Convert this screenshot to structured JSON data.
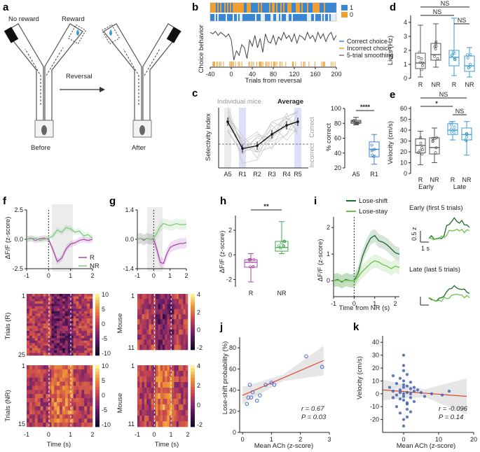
{
  "panels": {
    "a": {
      "letter": "a",
      "no_reward": "No reward",
      "reward": "Reward",
      "reversal": "Reversal",
      "before": "Before",
      "after": "After"
    },
    "b": {
      "letter": "b",
      "ylabel": "Choice behavior",
      "xlabel": "Trials from reversal",
      "legend_bar": [
        "1",
        "0"
      ],
      "legend": [
        "Correct choice",
        "Incorrect choice",
        "5-trial smoothing"
      ],
      "colors": {
        "blue": "#3a86d0",
        "orange": "#f0a030"
      }
    },
    "c": {
      "letter": "c",
      "title_left": "Individual mice",
      "title_right": "Average",
      "ylabel": "Selectivity index",
      "side_top": "Correct",
      "side_bottom": "Incorrect",
      "ylabel_right": "% correct",
      "sig": "****"
    },
    "d": {
      "letter": "d",
      "ylabel": "Licks (Hz)",
      "ns": [
        "NS",
        "NS",
        "NS"
      ]
    },
    "e": {
      "letter": "e",
      "ylabel": "Velocity (cm/s)",
      "sig": [
        "NS",
        "*",
        "NS"
      ],
      "groups": [
        "Early",
        "Late"
      ]
    },
    "f": {
      "letter": "f",
      "ylabel_trace": "ΔF/F (z-score)",
      "legend": [
        "R",
        "NR"
      ],
      "xlabel": "Time (s)",
      "ylabel_hm1": "Trials (R)",
      "ylabel_hm2": "Trials (NR)",
      "hm1_rows": [
        "1",
        "25"
      ],
      "hm2_rows": [
        "1",
        "15"
      ]
    },
    "g": {
      "letter": "g",
      "ylabel_hm": "Mouse",
      "xlabel": "Time (s)",
      "hm_rows": [
        "1",
        "11"
      ]
    },
    "h": {
      "letter": "h",
      "ylabel": "ΔF/F (z-score)",
      "sig": "**"
    },
    "i": {
      "letter": "i",
      "legend": [
        "Lose-shift",
        "Lose-stay"
      ],
      "ylabel": "ΔF/F (z-score)",
      "xlabel": "Time from NR (s)",
      "early": "Early (first 5 trials)",
      "late": "Late (last 5 trials)",
      "scale_y": "0.5 z",
      "scale_x": "1 s"
    },
    "j": {
      "letter": "j",
      "ylabel": "Lose-shift probability (%)",
      "xlabel": "Mean ACh (z-score)",
      "stat_r": "r = 0.67",
      "stat_p": "P = 0.03"
    },
    "k": {
      "letter": "k",
      "ylabel": "Velocity (cm/s)",
      "xlabel": "Mean ACh (z-score)",
      "stat_r": "r = -0.096",
      "stat_p": "P = 0.14"
    }
  },
  "chart_data": [
    {
      "id": "b",
      "type": "line",
      "xlabel": "Trials from reversal",
      "ylabel": "Choice behavior",
      "x_ticks": [
        -40,
        0,
        40,
        80,
        120,
        160,
        200
      ],
      "xlim": [
        -40,
        200
      ],
      "series": [
        {
          "name": "5-trial smoothing",
          "x": [
            -40,
            -35,
            -30,
            -25,
            -20,
            -15,
            -10,
            -5,
            0,
            5,
            10,
            15,
            20,
            25,
            30,
            35,
            40,
            45,
            50,
            55,
            60,
            65,
            70,
            75,
            80,
            85,
            90,
            95,
            100,
            105,
            110,
            115,
            120,
            125,
            130,
            135,
            140,
            145,
            150,
            155,
            160,
            165,
            170,
            175,
            180,
            185,
            190,
            195,
            200
          ],
          "y": [
            0.95,
            0.9,
            0.98,
            0.85,
            0.95,
            0.88,
            0.8,
            0.9,
            0.7,
            0.05,
            0.35,
            0.2,
            0.55,
            0.45,
            0.1,
            0.7,
            0.5,
            0.85,
            0.45,
            0.75,
            0.3,
            0.9,
            0.65,
            0.6,
            0.85,
            0.55,
            0.8,
            0.7,
            0.95,
            0.75,
            0.85,
            0.65,
            0.9,
            0.6,
            0.85,
            0.8,
            0.7,
            0.95,
            0.75,
            0.85,
            0.65,
            0.95,
            0.75,
            0.9,
            0.65,
            0.85,
            0.95,
            0.7,
            0.85
          ]
        }
      ]
    },
    {
      "id": "c-left",
      "type": "line",
      "ylabel": "Selectivity index",
      "categories": [
        "A5",
        "R1",
        "R2",
        "R3",
        "R4",
        "R5"
      ],
      "series": [
        {
          "name": "Average",
          "values": [
            0.65,
            -0.1,
            -0.02,
            0.3,
            0.55,
            0.65
          ]
        }
      ]
    },
    {
      "id": "c-right",
      "type": "box",
      "ylabel": "% correct",
      "categories": [
        "A5",
        "R1"
      ],
      "y_ticks": [
        20,
        40,
        60,
        80,
        100
      ],
      "ylim": [
        20,
        100
      ],
      "boxes": [
        {
          "min": 78,
          "q1": 80,
          "median": 82,
          "q3": 84,
          "max": 88
        },
        {
          "min": 25,
          "q1": 35,
          "median": 45,
          "q3": 55,
          "max": 65
        }
      ]
    },
    {
      "id": "d",
      "type": "box",
      "ylabel": "Licks (Hz)",
      "categories": [
        "R",
        "NR",
        "R",
        "NR"
      ],
      "y_ticks": [
        0,
        1,
        2,
        3,
        4
      ],
      "ylim": [
        0,
        4.5
      ],
      "boxes": [
        {
          "min": 0.1,
          "q1": 0.7,
          "median": 1.1,
          "q3": 1.8,
          "max": 3.8
        },
        {
          "min": 0.8,
          "q1": 1.3,
          "median": 1.7,
          "q3": 2.5,
          "max": 3.9
        },
        {
          "min": 0.2,
          "q1": 0.9,
          "median": 1.5,
          "q3": 2.0,
          "max": 4.3
        },
        {
          "min": 0.1,
          "q1": 0.5,
          "median": 0.9,
          "q3": 1.6,
          "max": 2.2
        }
      ]
    },
    {
      "id": "e",
      "type": "box",
      "ylabel": "Velocity (cm/s)",
      "categories": [
        "R",
        "NR",
        "R",
        "NR"
      ],
      "y_ticks": [
        0,
        10,
        20,
        30,
        40,
        50,
        60
      ],
      "ylim": [
        0,
        62
      ],
      "boxes": [
        {
          "min": 8,
          "q1": 19,
          "median": 26,
          "q3": 32,
          "max": 39
        },
        {
          "min": 10,
          "q1": 18,
          "median": 24,
          "q3": 33,
          "max": 42
        },
        {
          "min": 31,
          "q1": 36,
          "median": 40,
          "q3": 46,
          "max": 48
        },
        {
          "min": 17,
          "q1": 31,
          "median": 36,
          "q3": 42,
          "max": 48
        }
      ]
    },
    {
      "id": "f",
      "type": "line",
      "ylabel": "ΔF/F (z-score)",
      "xlabel": "Time (s)",
      "y_ticks": [
        -2.5,
        0.0,
        2.5
      ],
      "ylim": [
        -2.5,
        2.5
      ],
      "x_ticks": [
        -1,
        0,
        1,
        2
      ],
      "xlim": [
        -1,
        2
      ],
      "series": [
        {
          "name": "R",
          "x": [
            -1,
            -0.8,
            -0.6,
            -0.4,
            -0.2,
            0,
            0.2,
            0.4,
            0.6,
            0.8,
            1,
            1.2,
            1.4,
            1.6,
            1.8,
            2
          ],
          "y": [
            0,
            0.1,
            -0.1,
            0.05,
            0.1,
            0,
            -0.9,
            -1.9,
            -1.6,
            -0.8,
            -0.4,
            -0.3,
            -0.1,
            0,
            -0.1,
            0
          ]
        },
        {
          "name": "NR",
          "x": [
            -1,
            -0.8,
            -0.6,
            -0.4,
            -0.2,
            0,
            0.2,
            0.4,
            0.6,
            0.8,
            1,
            1.2,
            1.4,
            1.6,
            1.8,
            2
          ],
          "y": [
            0,
            0.05,
            0.1,
            -0.1,
            0,
            0.1,
            0.3,
            0.8,
            0.6,
            1.0,
            0.9,
            0.6,
            0.7,
            0.3,
            0.4,
            0.1
          ]
        }
      ]
    },
    {
      "id": "g",
      "type": "line",
      "xlabel": "Time (s)",
      "y_ticks": [
        -1.4,
        0.0,
        1.4
      ],
      "ylim": [
        -1.4,
        1.4
      ],
      "x_ticks": [
        -1,
        0,
        1,
        2
      ],
      "xlim": [
        -1,
        2
      ],
      "series": [
        {
          "name": "R",
          "x": [
            -1,
            -0.8,
            -0.6,
            -0.4,
            -0.2,
            0,
            0.2,
            0.4,
            0.6,
            0.8,
            1,
            1.2,
            1.4,
            1.6,
            1.8,
            2
          ],
          "y": [
            0,
            0.05,
            -0.05,
            0.05,
            0,
            0,
            -0.5,
            -1.1,
            -1.15,
            -0.7,
            -0.4,
            -0.3,
            -0.25,
            -0.2,
            -0.2,
            -0.15
          ]
        },
        {
          "name": "NR",
          "x": [
            -1,
            -0.8,
            -0.6,
            -0.4,
            -0.2,
            0,
            0.2,
            0.4,
            0.6,
            0.8,
            1,
            1.2,
            1.4,
            1.6,
            1.8,
            2
          ],
          "y": [
            0,
            0.05,
            0,
            0.05,
            0,
            0.05,
            0.3,
            0.6,
            0.75,
            0.7,
            0.65,
            0.7,
            0.75,
            0.7,
            0.7,
            0.72
          ]
        }
      ]
    },
    {
      "id": "h",
      "type": "box",
      "ylabel": "ΔF/F (z-score)",
      "categories": [
        "R",
        "NR"
      ],
      "y_ticks": [
        -2,
        0,
        2
      ],
      "ylim": [
        -2.6,
        3.2
      ],
      "boxes": [
        {
          "min": -2.2,
          "q1": -1.0,
          "median": -0.6,
          "q3": -0.4,
          "max": 0.1
        },
        {
          "min": 0.1,
          "q1": 0.3,
          "median": 0.6,
          "q3": 1.1,
          "max": 2.7
        }
      ]
    },
    {
      "id": "i",
      "type": "line",
      "ylabel": "ΔF/F (z-score)",
      "xlabel": "Time from NR (s)",
      "y_ticks": [
        0,
        1,
        2
      ],
      "ylim": [
        -0.6,
        2.4
      ],
      "x_ticks": [
        -1,
        0,
        1,
        2
      ],
      "xlim": [
        -1,
        2.2
      ],
      "series": [
        {
          "name": "Lose-shift",
          "x": [
            -1,
            -0.8,
            -0.6,
            -0.4,
            -0.2,
            0,
            0.2,
            0.4,
            0.6,
            0.8,
            1,
            1.2,
            1.4,
            1.6,
            1.8,
            2,
            2.2
          ],
          "y": [
            0,
            0.05,
            -0.05,
            0.05,
            0,
            0,
            0.3,
            0.9,
            1.3,
            1.6,
            1.7,
            1.5,
            1.45,
            1.35,
            1.2,
            1.05,
            1.0
          ]
        },
        {
          "name": "Lose-stay",
          "x": [
            -1,
            -0.8,
            -0.6,
            -0.4,
            -0.2,
            0,
            0.2,
            0.4,
            0.6,
            0.8,
            1,
            1.2,
            1.4,
            1.6,
            1.8,
            2,
            2.2
          ],
          "y": [
            0,
            0.02,
            -0.02,
            0.02,
            0,
            0,
            0.15,
            0.35,
            0.5,
            0.65,
            0.75,
            0.7,
            0.6,
            0.55,
            0.45,
            0.55,
            0.5
          ]
        }
      ]
    },
    {
      "id": "j",
      "type": "scatter",
      "xlabel": "Mean ACh (z-score)",
      "ylabel": "Lose-shift probability (%)",
      "x_ticks": [
        0,
        1,
        2,
        3
      ],
      "xlim": [
        -0.1,
        3.0
      ],
      "y_ticks": [
        0,
        20,
        40,
        60,
        80
      ],
      "ylim": [
        0,
        90
      ],
      "series": [
        {
          "x": [
            0.15,
            0.2,
            0.25,
            0.3,
            0.35,
            0.5,
            0.6,
            0.8,
            1.0,
            1.1,
            2.2,
            2.75
          ],
          "y": [
            27,
            33,
            45,
            33,
            38,
            30,
            35,
            45,
            47,
            45,
            72,
            62
          ]
        }
      ],
      "fit": {
        "x": [
          0,
          2.8
        ],
        "y": [
          35,
          68
        ]
      }
    },
    {
      "id": "k",
      "type": "scatter",
      "xlabel": "Mean ACh (z-score)",
      "ylabel": "Velocity (cm/s)",
      "x_ticks": [
        0,
        10,
        20
      ],
      "xlim": [
        -6,
        20
      ],
      "y_ticks": [
        -20,
        -10,
        0,
        10,
        20,
        30,
        40
      ],
      "ylim": [
        -30,
        45
      ],
      "series": [
        {
          "x": [
            -4,
            -3,
            -3,
            -2,
            -2,
            -1,
            -1,
            -1,
            0,
            0,
            0,
            0,
            0,
            0,
            0,
            1,
            1,
            1,
            1,
            2,
            2,
            2,
            3,
            3,
            4,
            5,
            6,
            8,
            11,
            13,
            -1,
            0,
            1,
            0,
            -2,
            2,
            0,
            1,
            -1,
            3,
            0,
            2,
            -3,
            1
          ],
          "y": [
            5,
            2,
            -3,
            8,
            -1,
            3,
            -4,
            12,
            30,
            18,
            10,
            5,
            0,
            -2,
            -5,
            -8,
            6,
            1,
            -12,
            4,
            -3,
            9,
            2,
            -6,
            3,
            1,
            -2,
            0,
            -1,
            2,
            -15,
            -20,
            15,
            22,
            -10,
            -14,
            7,
            -7,
            1,
            5,
            -25,
            0,
            14,
            -18
          ]
        }
      ],
      "fit": {
        "x": [
          -6,
          18
        ],
        "y": [
          3,
          -2
        ]
      }
    }
  ]
}
